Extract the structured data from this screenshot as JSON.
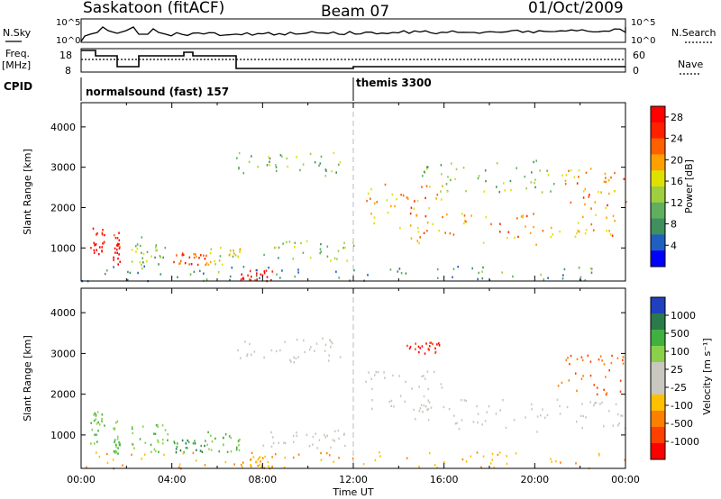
{
  "header": {
    "title_left": "Saskatoon (fitACF)",
    "title_center": "Beam 07",
    "title_right": "01/Oct/2009"
  },
  "top_panels": {
    "nsky_label": "N.Sky",
    "nsky_ticks": [
      "10^5",
      "10^0"
    ],
    "nsearch_label": "N.Search",
    "nsearch_ticks": [
      "10^5",
      "10^0"
    ],
    "freq_label_1": "Freq.",
    "freq_label_2": "[MHz]",
    "freq_ticks": [
      "18",
      "8"
    ],
    "nave_label": "Nave",
    "nave_ticks": [
      "60",
      "0"
    ],
    "cpid_label": "CPID",
    "cpid_modes": [
      {
        "name": "normalsound (fast) 157",
        "start_hour": 0
      },
      {
        "name": "themis 3300",
        "start_hour": 12
      }
    ]
  },
  "chart_data": [
    {
      "type": "heatmap",
      "quantity": "power",
      "ylabel": "Slant Range [km]",
      "xlabel": "",
      "xlim": [
        0,
        24
      ],
      "ylim": [
        180,
        4600
      ],
      "yticks": [
        1000,
        2000,
        3000,
        4000
      ],
      "colorbar_label": "Power [dB]",
      "colorbar_ticks": [
        4,
        8,
        12,
        16,
        20,
        24,
        28
      ],
      "colorscale": [
        "#0000ff",
        "#1f5fbf",
        "#3f8f5f",
        "#5faf5f",
        "#9fcf3f",
        "#e0e000",
        "#ffa000",
        "#ff6000",
        "#ff2000",
        "#ff0000"
      ],
      "regions": [
        {
          "t": [
            0.4,
            1.0
          ],
          "r": [
            800,
            1600
          ],
          "v": 28
        },
        {
          "t": [
            1.4,
            1.7
          ],
          "r": [
            500,
            1400
          ],
          "v": 28
        },
        {
          "t": [
            2.0,
            3.8
          ],
          "r": [
            600,
            1300
          ],
          "v": 12
        },
        {
          "t": [
            4.0,
            5.5
          ],
          "r": [
            600,
            900
          ],
          "v": 24
        },
        {
          "t": [
            5.5,
            7.0
          ],
          "r": [
            600,
            1100
          ],
          "v": 16
        },
        {
          "t": [
            7.0,
            8.5
          ],
          "r": [
            200,
            500
          ],
          "v": 28
        },
        {
          "t": [
            6.8,
            11.5
          ],
          "r": [
            2800,
            3400
          ],
          "v": 12
        },
        {
          "t": [
            8.0,
            12.0
          ],
          "r": [
            700,
            1200
          ],
          "v": 12
        },
        {
          "t": [
            0.0,
            24.0
          ],
          "r": [
            200,
            600
          ],
          "v": 8
        },
        {
          "t": [
            12.5,
            16.0
          ],
          "r": [
            1600,
            2600
          ],
          "v": 20
        },
        {
          "t": [
            14.0,
            24.0
          ],
          "r": [
            1100,
            1900
          ],
          "v": 20
        },
        {
          "t": [
            15.0,
            21.0
          ],
          "r": [
            2400,
            3200
          ],
          "v": 12
        },
        {
          "t": [
            21.0,
            24.0
          ],
          "r": [
            2000,
            3000
          ],
          "v": 20
        }
      ]
    },
    {
      "type": "heatmap",
      "quantity": "velocity",
      "ylabel": "Slant Range [km]",
      "xlabel": "Time UT",
      "xlim": [
        0,
        24
      ],
      "ylim": [
        180,
        4600
      ],
      "yticks": [
        1000,
        2000,
        3000,
        4000
      ],
      "xticks": [
        "00:00",
        "04:00",
        "08:00",
        "12:00",
        "16:00",
        "20:00",
        "00:00"
      ],
      "colorbar_label": "Velocity [m s⁻¹]",
      "colorbar_ticks": [
        1000,
        500,
        100,
        25,
        -25,
        -100,
        -500,
        -1000
      ],
      "colorscale": [
        "#2040c0",
        "#2a7a4a",
        "#40b040",
        "#8ad04a",
        "#c8c8c0",
        "#c8c8c0",
        "#ffc000",
        "#ff8000",
        "#ff4000",
        "#ff0000"
      ],
      "regions": [
        {
          "t": [
            0.4,
            1.0
          ],
          "r": [
            800,
            1600
          ],
          "v": 100
        },
        {
          "t": [
            1.4,
            1.7
          ],
          "r": [
            500,
            1400
          ],
          "v": 100
        },
        {
          "t": [
            2.0,
            3.8
          ],
          "r": [
            600,
            1300
          ],
          "v": 100
        },
        {
          "t": [
            4.0,
            5.5
          ],
          "r": [
            600,
            900
          ],
          "v": 500
        },
        {
          "t": [
            5.5,
            7.0
          ],
          "r": [
            600,
            1100
          ],
          "v": 100
        },
        {
          "t": [
            7.0,
            8.5
          ],
          "r": [
            200,
            500
          ],
          "v": -100
        },
        {
          "t": [
            6.8,
            11.5
          ],
          "r": [
            2800,
            3400
          ],
          "v": 0
        },
        {
          "t": [
            8.0,
            12.0
          ],
          "r": [
            700,
            1200
          ],
          "v": 0
        },
        {
          "t": [
            0.0,
            24.0
          ],
          "r": [
            200,
            600
          ],
          "v": -100
        },
        {
          "t": [
            12.5,
            16.0
          ],
          "r": [
            1600,
            2600
          ],
          "v": 0
        },
        {
          "t": [
            14.0,
            24.0
          ],
          "r": [
            1100,
            1900
          ],
          "v": 0
        },
        {
          "t": [
            14.3,
            15.8
          ],
          "r": [
            3000,
            3300
          ],
          "v": -1000
        },
        {
          "t": [
            21.0,
            24.0
          ],
          "r": [
            2000,
            3000
          ],
          "v": -500
        }
      ]
    }
  ]
}
